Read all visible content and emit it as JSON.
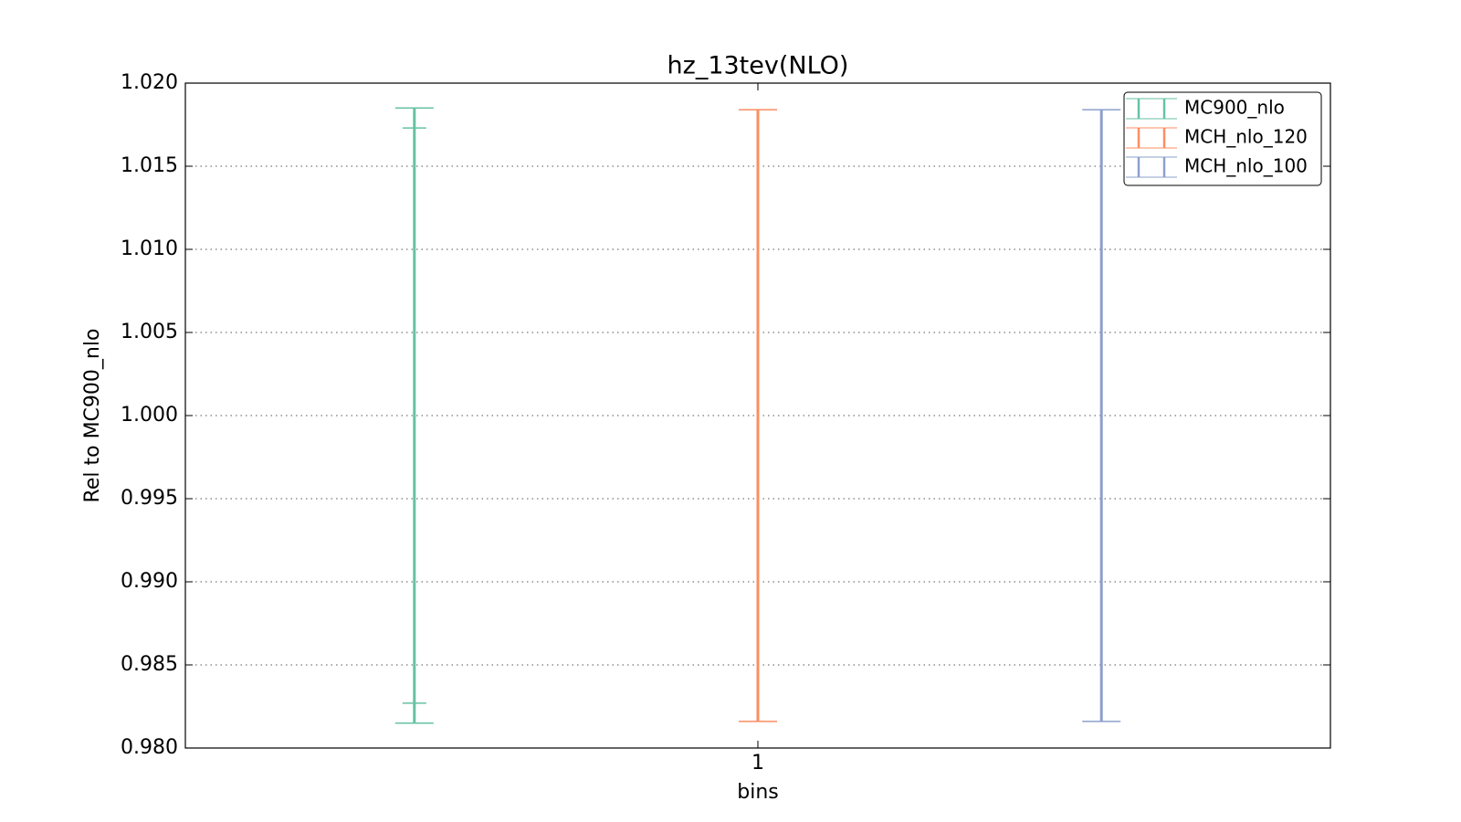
{
  "chart_data": {
    "type": "errorbar",
    "title": "hz_13tev(NLO)",
    "x_label": "bins",
    "y_label": "Rel to MC900_nlo",
    "categories": [
      "1"
    ],
    "series": [
      {
        "name": "MC900_nlo",
        "color": "#66c2a5",
        "values": [
          1.0
        ],
        "yerr": [
          0.0185
        ],
        "yerr_inner": [
          0.0173
        ]
      },
      {
        "name": "MCH_nlo_120",
        "color": "#fc8d62",
        "values": [
          1.0
        ],
        "yerr": [
          0.0184
        ]
      },
      {
        "name": "MCH_nlo_100",
        "color": "#8da0cb",
        "values": [
          1.0
        ],
        "yerr": [
          0.0184
        ]
      }
    ],
    "ylim": [
      0.98,
      1.02
    ],
    "yticks": [
      {
        "value": 0.98,
        "label": "0.980"
      },
      0.985,
      {
        "value": 0.99,
        "label": "0.990"
      },
      0.995,
      {
        "value": 1.0,
        "label": "1.000"
      },
      1.005,
      {
        "value": 1.01,
        "label": "1.010"
      },
      1.015,
      {
        "value": 1.02,
        "label": "1.020"
      }
    ],
    "grid": true,
    "legend": "upper right"
  }
}
